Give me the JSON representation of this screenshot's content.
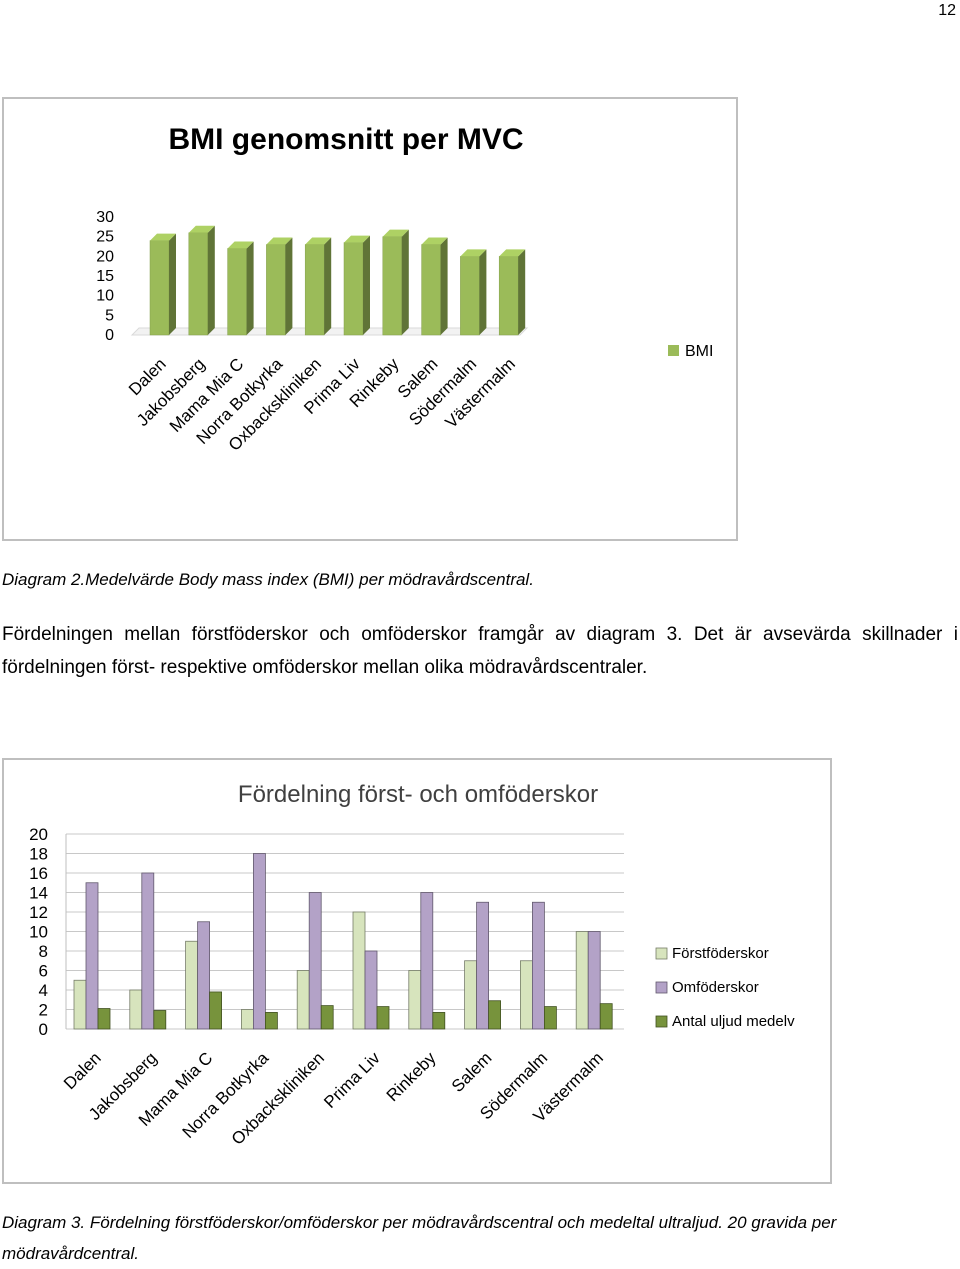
{
  "page_number": "12",
  "caption_1": "Diagram 2.Medelvärde  Body mass index (BMI) per mödravårdscentral.",
  "paragraph": "Fördelningen mellan förstföderskor och omföderskor framgår av diagram 3. Det är avsevärda skillnader i fördelningen först- respektive omföderskor mellan olika mödravårdscentraler.",
  "caption_3": "Diagram 3. Fördelning förstföderskor/omföderskor per mödravårdscentral och medeltal ultraljud. 20 gravida per mödravårdcentral.",
  "chart_data": [
    {
      "type": "bar",
      "title": "BMI genomsnitt per MVC",
      "categories": [
        "Dalen",
        "Jakobsberg",
        "Mama Mia C",
        "Norra Botkyrka",
        "Oxbackskliniken",
        "Prima Liv",
        "Rinkeby",
        "Salem",
        "Södermalm",
        "Västermalm"
      ],
      "series": [
        {
          "name": "BMI",
          "values": [
            24,
            26,
            22,
            23,
            23,
            23.5,
            25,
            23,
            20,
            20
          ]
        }
      ],
      "yticks": [
        "0",
        "5",
        "10",
        "15",
        "20",
        "25",
        "30"
      ],
      "ylim": [
        0,
        30
      ],
      "colors": {
        "BMI": "#9bbb59"
      },
      "grid": false,
      "legend": "right",
      "style": "3d"
    },
    {
      "type": "bar",
      "title": "Fördelning först- och omföderskor",
      "categories": [
        "Dalen",
        "Jakobsberg",
        "Mama Mia C",
        "Norra Botkyrka",
        "Oxbackskliniken",
        "Prima Liv",
        "Rinkeby",
        "Salem",
        "Södermalm",
        "Västermalm"
      ],
      "series": [
        {
          "name": "Förstföderskor",
          "values": [
            5,
            4,
            9,
            2,
            6,
            12,
            6,
            7,
            7,
            10
          ]
        },
        {
          "name": "Omföderskor",
          "values": [
            15,
            16,
            11,
            18,
            14,
            8,
            14,
            13,
            13,
            10
          ]
        },
        {
          "name": "Antal uljud medelv",
          "values": [
            2.1,
            1.9,
            3.8,
            1.7,
            2.4,
            2.3,
            1.7,
            2.9,
            2.3,
            2.6
          ]
        }
      ],
      "yticks": [
        "0",
        "2",
        "4",
        "6",
        "8",
        "10",
        "12",
        "14",
        "16",
        "18",
        "20"
      ],
      "ylim": [
        0,
        20
      ],
      "colors": {
        "Förstföderskor": "#d7e4bd",
        "Omföderskor": "#b3a2c7",
        "Antal uljud medelv": "#77933c"
      },
      "grid": true,
      "legend": "right"
    }
  ]
}
